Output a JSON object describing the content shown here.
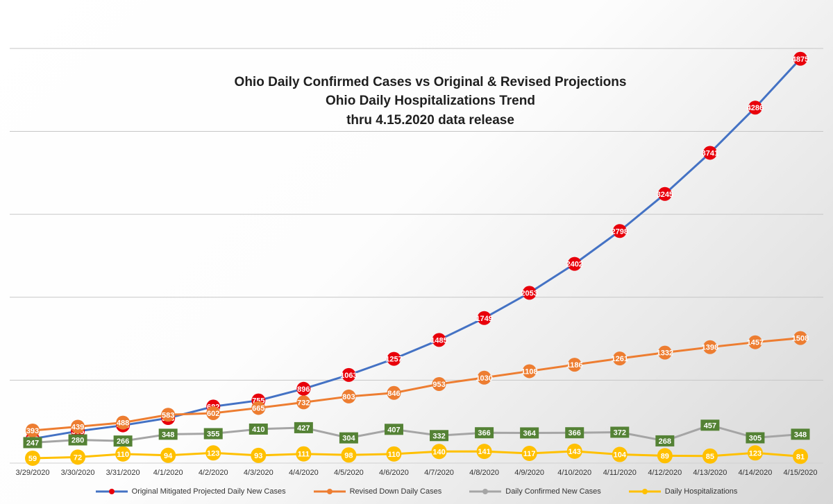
{
  "chart_data": {
    "type": "line",
    "title_lines": [
      "Ohio Daily Confirmed Cases vs Original & Revised Projections",
      "Ohio Daily Hospitalizations Trend",
      "thru 4.15.2020 data release"
    ],
    "categories": [
      "3/29/2020",
      "3/30/2020",
      "3/31/2020",
      "4/1/2020",
      "4/2/2020",
      "4/3/2020",
      "4/4/2020",
      "4/5/2020",
      "4/6/2020",
      "4/7/2020",
      "4/8/2020",
      "4/9/2020",
      "4/10/2020",
      "4/11/2020",
      "4/12/2020",
      "4/13/2020",
      "4/14/2020",
      "4/15/2020"
    ],
    "ylim": [
      0,
      5500
    ],
    "grid": true,
    "gridline_step": 1000,
    "legend_position": "bottom",
    "series": [
      {
        "name": "Original Mitigated Projected Daily New Cases",
        "color": "#4472c4",
        "marker_color": "#e8000b",
        "marker": "circle",
        "values": [
          293,
          385,
          455,
          543,
          682,
          755,
          896,
          1063,
          1257,
          1485,
          1749,
          2053,
          2402,
          2798,
          3245,
          3741,
          4286,
          4875
        ]
      },
      {
        "name": "Revised Down Daily Cases",
        "color": "#ed7d31",
        "marker_color": "#ed7d31",
        "marker": "circle",
        "values": [
          393,
          439,
          488,
          583,
          602,
          665,
          732,
          803,
          846,
          953,
          1030,
          1108,
          1186,
          1261,
          1332,
          1398,
          1457,
          1508
        ]
      },
      {
        "name": "Daily Confirmed New Cases",
        "color": "#a5a5a5",
        "marker_color": "#548235",
        "marker": "square",
        "values": [
          247,
          280,
          266,
          348,
          355,
          410,
          427,
          304,
          407,
          332,
          366,
          364,
          366,
          372,
          268,
          457,
          305,
          348
        ]
      },
      {
        "name": "Daily Hospitalizations",
        "color": "#ffc000",
        "marker_color": "#ffc000",
        "marker": "circle",
        "values": [
          59,
          72,
          110,
          94,
          123,
          93,
          111,
          98,
          110,
          140,
          141,
          117,
          143,
          104,
          89,
          85,
          123,
          81
        ]
      }
    ]
  }
}
